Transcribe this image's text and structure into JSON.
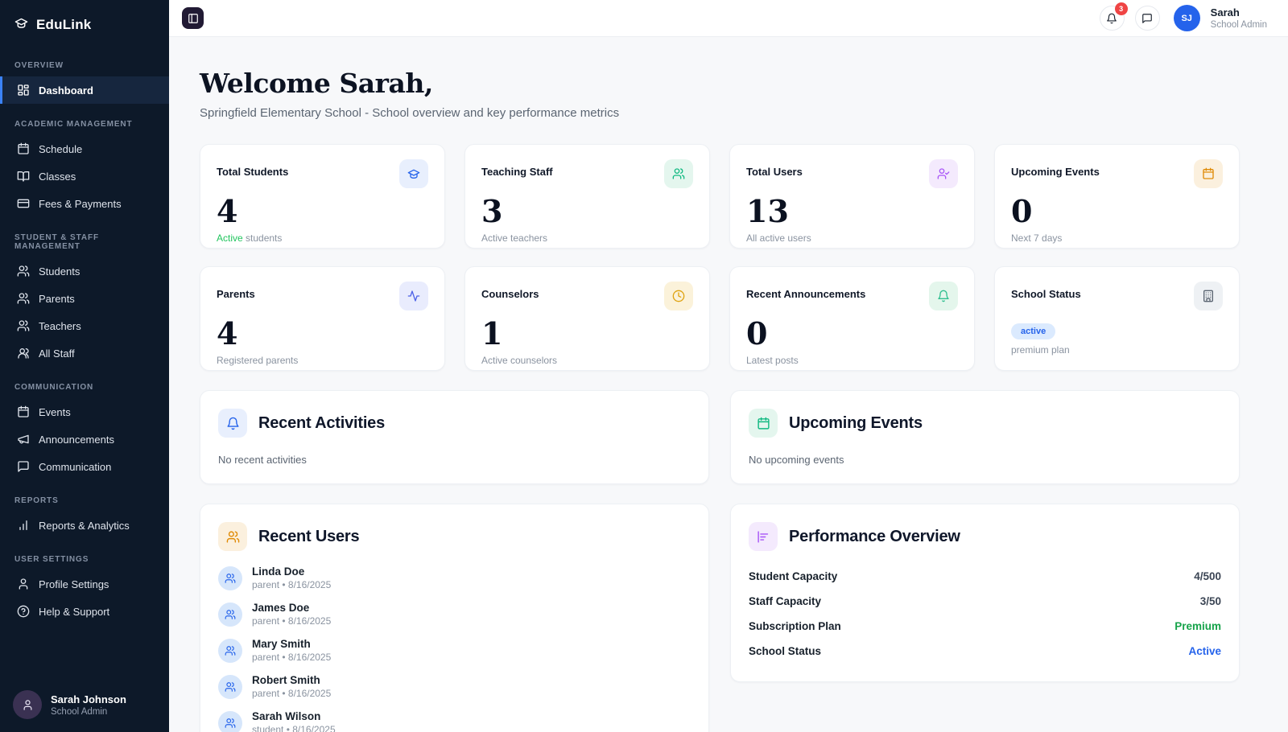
{
  "colors": {
    "sidebar_bg": "#0d1929",
    "accent_blue": "#2563eb",
    "active_green": "#22c55e",
    "badge_red": "#ef4444",
    "status_badge_bg": "#dbeafe"
  },
  "sidebar": {
    "logo_text": "EduLink",
    "sections": [
      {
        "label": "OVERVIEW",
        "items": [
          {
            "label": "Dashboard"
          }
        ]
      },
      {
        "label": "ACADEMIC MANAGEMENT",
        "items": [
          {
            "label": "Schedule"
          },
          {
            "label": "Classes"
          },
          {
            "label": "Fees & Payments"
          }
        ]
      },
      {
        "label": "STUDENT & STAFF MANAGEMENT",
        "items": [
          {
            "label": "Students"
          },
          {
            "label": "Parents"
          },
          {
            "label": "Teachers"
          },
          {
            "label": "All Staff"
          }
        ]
      },
      {
        "label": "COMMUNICATION",
        "items": [
          {
            "label": "Events"
          },
          {
            "label": "Announcements"
          },
          {
            "label": "Communication"
          }
        ]
      },
      {
        "label": "REPORTS",
        "items": [
          {
            "label": "Reports & Analytics"
          }
        ]
      },
      {
        "label": "USER SETTINGS",
        "items": [
          {
            "label": "Profile Settings"
          },
          {
            "label": "Help & Support"
          }
        ]
      }
    ],
    "user": {
      "name": "Sarah Johnson",
      "role": "School Admin"
    }
  },
  "topbar": {
    "notification_count": "3",
    "avatar_initials": "SJ",
    "user_name": "Sarah",
    "user_role": "School Admin"
  },
  "header": {
    "title": "Welcome Sarah,",
    "subtitle": "Springfield Elementary School - School overview and key performance metrics"
  },
  "stats": [
    {
      "title": "Total Students",
      "value": "4",
      "sub_accent": "Active",
      "sub_rest": " students"
    },
    {
      "title": "Teaching Staff",
      "value": "3",
      "sub_accent": "",
      "sub_rest": "Active teachers"
    },
    {
      "title": "Total Users",
      "value": "13",
      "sub_accent": "",
      "sub_rest": "All active users"
    },
    {
      "title": "Upcoming Events",
      "value": "0",
      "sub_accent": "",
      "sub_rest": "Next 7 days"
    },
    {
      "title": "Parents",
      "value": "4",
      "sub_accent": "",
      "sub_rest": "Registered parents"
    },
    {
      "title": "Counselors",
      "value": "1",
      "sub_accent": "",
      "sub_rest": "Active counselors"
    },
    {
      "title": "Recent Announcements",
      "value": "0",
      "sub_accent": "",
      "sub_rest": "Latest posts"
    },
    {
      "title": "School Status",
      "badge": "active",
      "sub_rest": "premium plan"
    }
  ],
  "panels": {
    "activities": {
      "title": "Recent Activities",
      "empty": "No recent activities"
    },
    "events": {
      "title": "Upcoming Events",
      "empty": "No upcoming events"
    },
    "recent_users": {
      "title": "Recent Users",
      "users": [
        {
          "name": "Linda Doe",
          "meta": "parent • 8/16/2025"
        },
        {
          "name": "James Doe",
          "meta": "parent • 8/16/2025"
        },
        {
          "name": "Mary Smith",
          "meta": "parent • 8/16/2025"
        },
        {
          "name": "Robert Smith",
          "meta": "parent • 8/16/2025"
        },
        {
          "name": "Sarah Wilson",
          "meta": "student • 8/16/2025"
        }
      ]
    },
    "performance": {
      "title": "Performance Overview",
      "rows": [
        {
          "label": "Student Capacity",
          "value": "4/500"
        },
        {
          "label": "Staff Capacity",
          "value": "3/50"
        },
        {
          "label": "Subscription Plan",
          "value": "Premium"
        },
        {
          "label": "School Status",
          "value": "Active"
        }
      ]
    }
  }
}
